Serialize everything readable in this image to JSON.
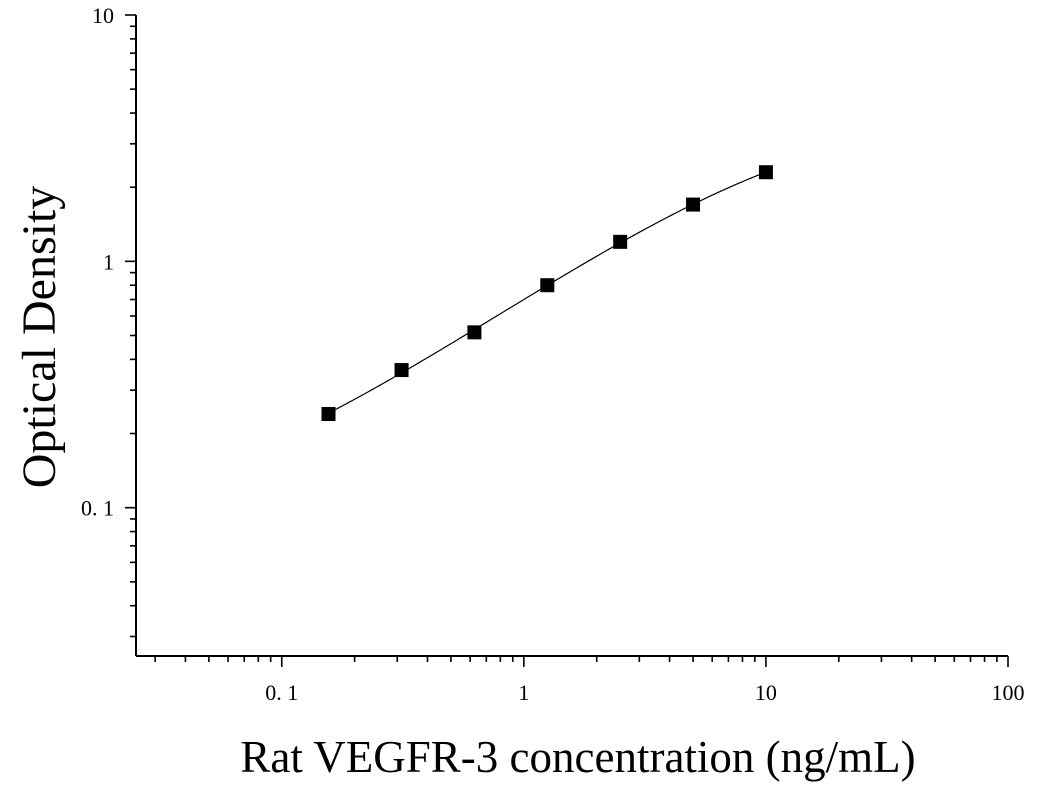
{
  "chart_data": {
    "type": "scatter",
    "xlabel": "Rat VEGFR-3 concentration (ng/mL)",
    "ylabel": "Optical Density",
    "xscale": "log",
    "yscale": "log",
    "xlim": [
      0.025,
      100
    ],
    "ylim": [
      0.025,
      10
    ],
    "x_ticks": [
      0.1,
      1,
      10,
      100
    ],
    "x_tick_labels": [
      "0. 1",
      "1",
      "10",
      "100"
    ],
    "y_ticks": [
      0.1,
      1,
      10
    ],
    "y_tick_labels": [
      "0. 1",
      "1",
      "10"
    ],
    "grid": false,
    "series": [
      {
        "x": [
          0.156,
          0.3125,
          0.625,
          1.25,
          2.5,
          5,
          10
        ],
        "y": [
          0.24,
          0.362,
          0.515,
          0.8,
          1.2,
          1.7,
          2.3
        ],
        "marker": "square",
        "fit_curve": true
      }
    ],
    "colors": {
      "marker": "#000000",
      "line": "#000000",
      "axis": "#000000"
    }
  }
}
